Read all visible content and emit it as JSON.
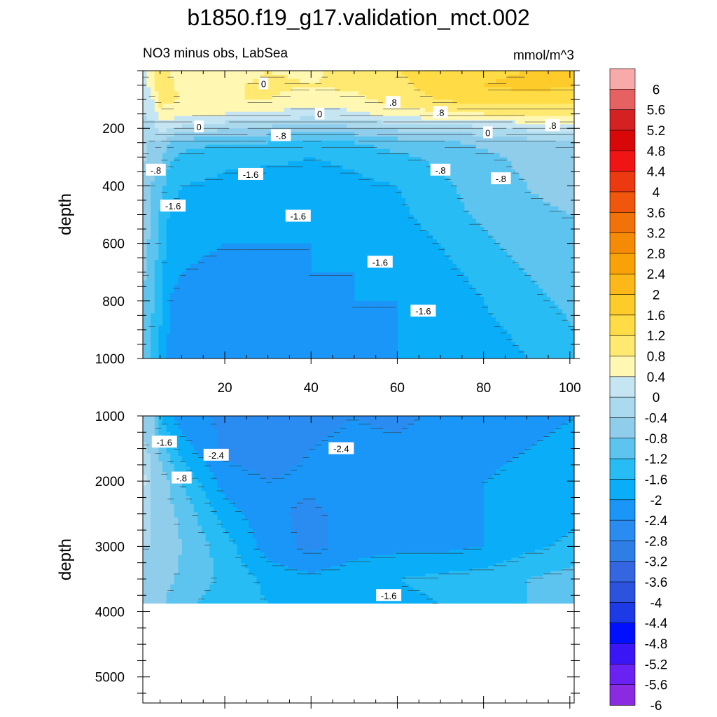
{
  "title": "b1850.f19_g17.validation_mct.002",
  "subtitle_left": "NO3 minus obs, LabSea",
  "subtitle_right": "mmol/m^3",
  "colors": {
    "levels": [
      "#8a2be2",
      "#6a22f2",
      "#3a16f6",
      "#0010ff",
      "#1c3ae6",
      "#2c52e0",
      "#3366e0",
      "#2f7ee6",
      "#2a8cf0",
      "#1a96f8",
      "#0aaef8",
      "#28bcf4",
      "#5cc4ef",
      "#90cdeb",
      "#abd9ee",
      "#c6e5f3",
      "#fff7b2",
      "#ffe970",
      "#ffdc45",
      "#fdcb2a",
      "#fbb818",
      "#f8a208",
      "#f58a06",
      "#f2720a",
      "#f0560c",
      "#ec3a10",
      "#f01414",
      "#d80808",
      "#d42222",
      "#e66262",
      "#f8aaaa"
    ],
    "contour_line": "#333333",
    "missing": "#ffffff"
  },
  "chart_data": [
    {
      "type": "contour",
      "panel": "upper",
      "ylabel": "depth",
      "ylim": [
        1000,
        0
      ],
      "xlim": [
        1,
        101
      ],
      "x_ticks": [
        20,
        40,
        60,
        80,
        100
      ],
      "y_ticks": [
        200,
        400,
        600,
        800,
        1000
      ],
      "grid": false,
      "depths": [
        0,
        50,
        100,
        150,
        200,
        250,
        300,
        400,
        500,
        600,
        700,
        800,
        900,
        1000
      ],
      "x": [
        1,
        3,
        5,
        7,
        10,
        20,
        30,
        40,
        50,
        60,
        70,
        80,
        90,
        101
      ],
      "values": [
        [
          0.3,
          0.6,
          1.0,
          0.8,
          0.5,
          0.6,
          0.8,
          0.7,
          1.0,
          1.2,
          1.3,
          1.5,
          1.6,
          1.6
        ],
        [
          0.2,
          0.5,
          1.2,
          1.0,
          0.6,
          0.7,
          0.9,
          0.8,
          0.9,
          1.1,
          1.4,
          1.6,
          1.7,
          1.7
        ],
        [
          0.1,
          0.3,
          1.0,
          0.9,
          0.8,
          0.8,
          0.8,
          0.6,
          0.7,
          1.0,
          1.2,
          1.5,
          1.4,
          1.3
        ],
        [
          0.0,
          0.1,
          0.6,
          0.6,
          0.5,
          0.4,
          0.3,
          0.2,
          0.3,
          0.6,
          0.7,
          0.8,
          0.9,
          1.0
        ],
        [
          -0.1,
          -0.2,
          0.2,
          0.1,
          -0.1,
          -0.3,
          -0.5,
          -0.6,
          -0.5,
          -0.3,
          -0.2,
          -0.1,
          0.1,
          0.3
        ],
        [
          -0.2,
          -0.5,
          -0.4,
          -0.8,
          -1.0,
          -1.2,
          -1.2,
          -1.3,
          -1.2,
          -1.0,
          -0.9,
          -0.7,
          -0.6,
          -0.4
        ],
        [
          -0.3,
          -0.7,
          -0.6,
          -1.1,
          -1.3,
          -1.5,
          -1.5,
          -1.6,
          -1.5,
          -1.3,
          -1.1,
          -0.9,
          -0.7,
          -0.4
        ],
        [
          -0.4,
          -0.8,
          -1.0,
          -1.4,
          -1.6,
          -1.7,
          -1.8,
          -1.8,
          -1.7,
          -1.6,
          -1.3,
          -1.0,
          -0.8,
          -0.6
        ],
        [
          -0.5,
          -0.9,
          -1.2,
          -1.6,
          -1.8,
          -1.9,
          -1.9,
          -1.9,
          -1.8,
          -1.7,
          -1.4,
          -1.1,
          -0.9,
          -0.8
        ],
        [
          -0.6,
          -0.9,
          -1.3,
          -1.8,
          -1.9,
          -2.0,
          -2.0,
          -2.0,
          -1.9,
          -1.8,
          -1.6,
          -1.3,
          -1.0,
          -0.9
        ],
        [
          -0.7,
          -1.0,
          -1.4,
          -1.9,
          -2.0,
          -2.1,
          -2.1,
          -2.0,
          -2.0,
          -1.9,
          -1.7,
          -1.5,
          -1.2,
          -1.0
        ],
        [
          -0.8,
          -1.1,
          -1.5,
          -2.0,
          -2.1,
          -2.2,
          -2.1,
          -2.1,
          -2.0,
          -2.0,
          -1.8,
          -1.6,
          -1.3,
          -1.1
        ],
        [
          -0.9,
          -1.2,
          -1.6,
          -2.0,
          -2.1,
          -2.3,
          -2.2,
          -2.1,
          -2.1,
          -2.0,
          -1.9,
          -1.7,
          -1.5,
          -1.2
        ],
        [
          -1.0,
          -1.3,
          -1.7,
          -2.1,
          -2.2,
          -2.4,
          -2.3,
          -2.2,
          -2.1,
          -2.0,
          -2.0,
          -1.8,
          -1.6,
          -1.4
        ]
      ],
      "contour_labels": [
        {
          "text": "0",
          "x": 29,
          "depth": 45
        },
        {
          "text": "0",
          "x": 14,
          "depth": 195
        },
        {
          "text": "0",
          "x": 42,
          "depth": 150
        },
        {
          "text": "0",
          "x": 81,
          "depth": 215
        },
        {
          "text": ".8",
          "x": 59,
          "depth": 110
        },
        {
          "text": ".8",
          "x": 70,
          "depth": 145
        },
        {
          "text": ".8",
          "x": 96,
          "depth": 190
        },
        {
          "text": "-.8",
          "x": 33,
          "depth": 225
        },
        {
          "text": "-.8",
          "x": 4,
          "depth": 345
        },
        {
          "text": "-.8",
          "x": 70,
          "depth": 345
        },
        {
          "text": "-.8",
          "x": 84,
          "depth": 375
        },
        {
          "text": "-1.6",
          "x": 8,
          "depth": 470
        },
        {
          "text": "-1.6",
          "x": 26,
          "depth": 360
        },
        {
          "text": "-1.6",
          "x": 37,
          "depth": 505
        },
        {
          "text": "-1.6",
          "x": 56,
          "depth": 665
        },
        {
          "text": "-1.6",
          "x": 66,
          "depth": 835
        }
      ]
    },
    {
      "type": "contour",
      "panel": "lower",
      "ylabel": "depth",
      "ylim": [
        5400,
        1000
      ],
      "xlim": [
        1,
        101
      ],
      "x_ticks": [
        20,
        40,
        60,
        80,
        100
      ],
      "y_ticks": [
        1000,
        2000,
        3000,
        4000,
        5000
      ],
      "grid": false,
      "data_bottom_depth": 3870,
      "depths": [
        1000,
        1500,
        2000,
        2500,
        3000,
        3500,
        3870
      ],
      "x": [
        1,
        3,
        5,
        7,
        10,
        20,
        30,
        40,
        50,
        60,
        70,
        80,
        90,
        101
      ],
      "values": [
        [
          -0.6,
          -0.6,
          -1.6,
          -1.9,
          -2.2,
          -2.5,
          -2.6,
          -2.5,
          -2.4,
          -2.5,
          -2.3,
          -2.3,
          -2.1,
          -2.0
        ],
        [
          -0.3,
          -0.5,
          -0.9,
          -1.3,
          -1.8,
          -2.5,
          -2.6,
          -2.4,
          -2.3,
          -2.3,
          -2.2,
          -2.1,
          -2.0,
          -1.9
        ],
        [
          0.2,
          -0.4,
          -0.6,
          -0.8,
          -1.2,
          -2.2,
          -2.4,
          -2.3,
          -2.2,
          -2.2,
          -2.1,
          -2.0,
          -1.9,
          -1.8
        ],
        [
          -0.3,
          -0.4,
          -0.5,
          -0.7,
          -0.9,
          -1.8,
          -2.3,
          -2.5,
          -2.2,
          -2.2,
          -2.1,
          -2.0,
          -1.8,
          -1.7
        ],
        [
          -0.4,
          -0.4,
          -0.5,
          -0.6,
          -0.8,
          -1.4,
          -2.2,
          -2.5,
          -2.2,
          -2.1,
          -2.1,
          -2.0,
          -1.7,
          -1.5
        ],
        [
          -0.4,
          -0.5,
          -0.6,
          -0.7,
          -0.9,
          -1.3,
          -1.7,
          -1.9,
          -1.7,
          -1.6,
          -1.5,
          -1.4,
          -1.2,
          -1.0
        ],
        [
          -0.5,
          -0.6,
          -0.7,
          -0.9,
          -1.1,
          -1.4,
          -1.6,
          -1.8,
          -1.7,
          -1.7,
          -1.6,
          -1.4,
          -1.2,
          -1.1
        ]
      ],
      "contour_labels": [
        {
          "text": "-1.6",
          "x": 6,
          "depth": 1400
        },
        {
          "text": "-.8",
          "x": 10,
          "depth": 1950
        },
        {
          "text": "-2.4",
          "x": 18,
          "depth": 1600
        },
        {
          "text": "-2.4",
          "x": 47,
          "depth": 1500
        },
        {
          "text": "-1.6",
          "x": 58,
          "depth": 3750
        }
      ]
    }
  ],
  "colorbar": {
    "labels": [
      "6",
      "5.6",
      "5.2",
      "4.8",
      "4.4",
      "4",
      "3.6",
      "3.2",
      "2.8",
      "2.4",
      "2",
      "1.6",
      "1.2",
      "0.8",
      "0.4",
      "0",
      "-0.4",
      "-0.8",
      "-1.2",
      "-1.6",
      "-2",
      "-2.4",
      "-2.8",
      "-3.2",
      "-3.6",
      "-4",
      "-4.4",
      "-4.8",
      "-5.2",
      "-5.6",
      "-6"
    ]
  }
}
